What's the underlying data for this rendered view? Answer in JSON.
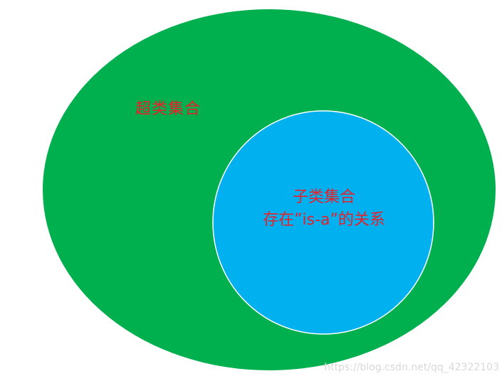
{
  "colors": {
    "superset_fill": "#00b04f",
    "subset_fill": "#00b0ef",
    "subset_stroke": "#ffffff",
    "text": "#e8202a",
    "watermark": "#d9d9d9"
  },
  "diagram": {
    "superset": {
      "label": "超类集合"
    },
    "subset": {
      "label_line1": "子类集合",
      "label_line2": "存在”is-a”的关系"
    }
  },
  "watermark": "https://blog.csdn.net/qq_42322103"
}
